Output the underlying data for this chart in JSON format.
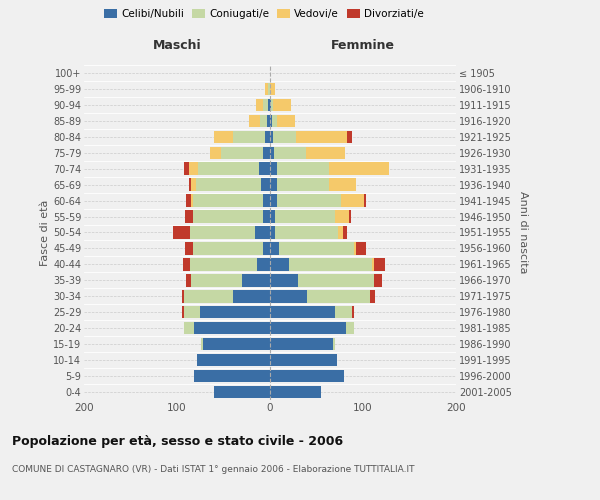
{
  "age_groups": [
    "0-4",
    "5-9",
    "10-14",
    "15-19",
    "20-24",
    "25-29",
    "30-34",
    "35-39",
    "40-44",
    "45-49",
    "50-54",
    "55-59",
    "60-64",
    "65-69",
    "70-74",
    "75-79",
    "80-84",
    "85-89",
    "90-94",
    "95-99",
    "100+"
  ],
  "birth_years": [
    "2001-2005",
    "1996-2000",
    "1991-1995",
    "1986-1990",
    "1981-1985",
    "1976-1980",
    "1971-1975",
    "1966-1970",
    "1961-1965",
    "1956-1960",
    "1951-1955",
    "1946-1950",
    "1941-1945",
    "1936-1940",
    "1931-1935",
    "1926-1930",
    "1921-1925",
    "1916-1920",
    "1911-1915",
    "1906-1910",
    "≤ 1905"
  ],
  "male": {
    "celibi": [
      60,
      82,
      78,
      72,
      82,
      75,
      40,
      30,
      14,
      8,
      16,
      8,
      8,
      10,
      12,
      8,
      5,
      3,
      2,
      0,
      0
    ],
    "coniugati": [
      0,
      0,
      0,
      2,
      10,
      18,
      52,
      55,
      72,
      75,
      70,
      75,
      75,
      70,
      65,
      45,
      35,
      8,
      5,
      2,
      0
    ],
    "vedovi": [
      0,
      0,
      0,
      0,
      0,
      0,
      0,
      0,
      0,
      0,
      0,
      0,
      2,
      5,
      10,
      12,
      20,
      12,
      8,
      3,
      0
    ],
    "divorziati": [
      0,
      0,
      0,
      0,
      0,
      2,
      3,
      5,
      8,
      8,
      18,
      8,
      5,
      2,
      5,
      0,
      0,
      0,
      0,
      0,
      0
    ]
  },
  "female": {
    "nubili": [
      55,
      80,
      72,
      68,
      82,
      70,
      40,
      30,
      20,
      10,
      5,
      5,
      8,
      8,
      8,
      4,
      3,
      2,
      1,
      0,
      0
    ],
    "coniugate": [
      0,
      0,
      0,
      2,
      8,
      18,
      68,
      82,
      90,
      80,
      68,
      65,
      68,
      55,
      55,
      35,
      25,
      5,
      2,
      0,
      0
    ],
    "vedove": [
      0,
      0,
      0,
      0,
      0,
      0,
      0,
      0,
      2,
      3,
      5,
      15,
      25,
      30,
      65,
      42,
      55,
      20,
      20,
      5,
      0
    ],
    "divorziate": [
      0,
      0,
      0,
      0,
      0,
      2,
      5,
      8,
      12,
      10,
      5,
      2,
      2,
      0,
      0,
      0,
      5,
      0,
      0,
      0,
      0
    ]
  },
  "colors": {
    "celibi": "#3a6ea5",
    "coniugati": "#c5d8a4",
    "vedovi": "#f5c96a",
    "divorziati": "#c0392b"
  },
  "xlim": 200,
  "title": "Popolazione per età, sesso e stato civile - 2006",
  "subtitle": "COMUNE DI CASTAGNARO (VR) - Dati ISTAT 1° gennaio 2006 - Elaborazione TUTTITALIA.IT",
  "ylabel_left": "Fasce di età",
  "ylabel_right": "Anni di nascita",
  "xlabel_left": "Maschi",
  "xlabel_right": "Femmine",
  "bg_color": "#f0f0f0",
  "plot_bg": "#f0f0f0"
}
